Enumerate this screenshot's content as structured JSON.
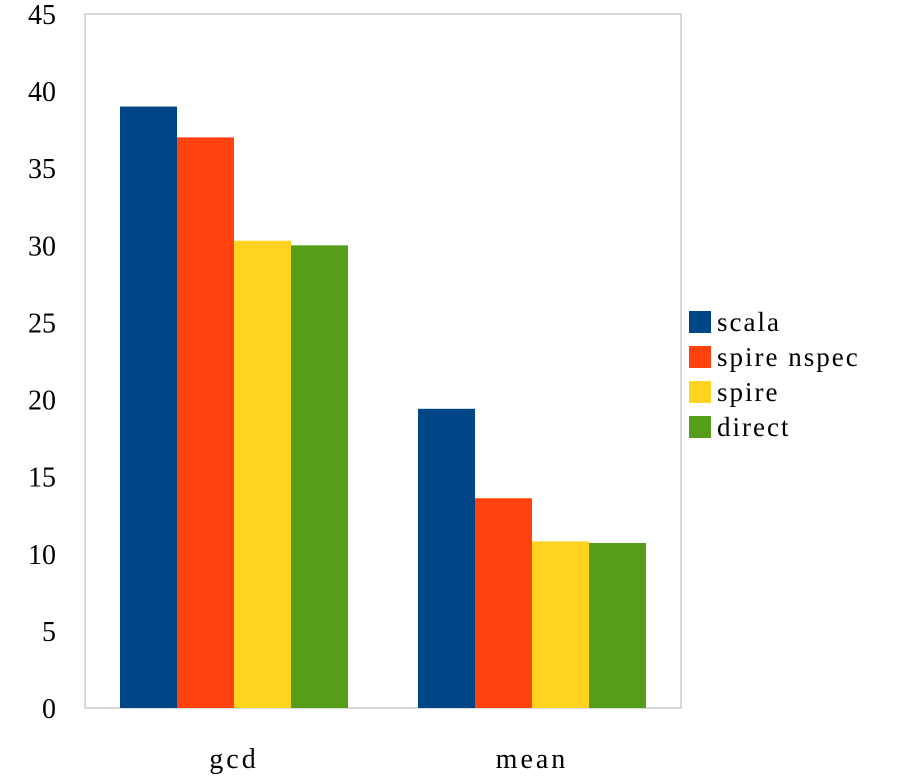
{
  "chart_data": {
    "type": "bar",
    "title": "",
    "xlabel": "",
    "ylabel": "",
    "categories": [
      "gcd",
      "mean"
    ],
    "ylim": [
      0,
      45
    ],
    "yticks": [
      0,
      5,
      10,
      15,
      20,
      25,
      30,
      35,
      40,
      45
    ],
    "grid": false,
    "legend_position": "right",
    "series": [
      {
        "name": "scala",
        "color": "#004586",
        "values": [
          39.0,
          19.4
        ]
      },
      {
        "name": "spire nspec",
        "color": "#ff420e",
        "values": [
          37.0,
          13.6
        ]
      },
      {
        "name": "spire",
        "color": "#ffd320",
        "values": [
          30.3,
          10.8
        ]
      },
      {
        "name": "direct",
        "color": "#579d1c",
        "values": [
          30.0,
          10.7
        ]
      }
    ]
  }
}
